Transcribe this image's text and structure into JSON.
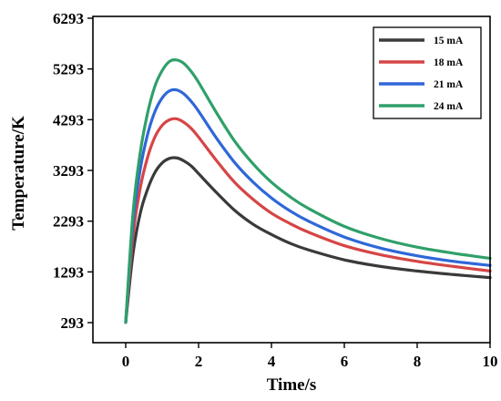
{
  "chart_data": {
    "type": "line",
    "title": "",
    "xlabel": "Time/s",
    "ylabel": "Temperature/K",
    "xlim": [
      -0.9,
      10
    ],
    "ylim": [
      293,
      6293
    ],
    "xticks": [
      0,
      2,
      4,
      6,
      8,
      10
    ],
    "xtick_labels": [
      "0",
      "2",
      "4",
      "6",
      "8",
      "10"
    ],
    "yticks": [
      293,
      1293,
      2293,
      3293,
      4293,
      5293,
      6293
    ],
    "ytick_labels": [
      "293",
      "1293",
      "2293",
      "3293",
      "4293",
      "5293",
      "6293"
    ],
    "grid": false,
    "legend_position": "top-right",
    "series": [
      {
        "name": "15 mA",
        "color": "#3a3a3a",
        "x": [
          0,
          0.2,
          0.4,
          0.6,
          0.8,
          1.0,
          1.2,
          1.4,
          1.6,
          1.8,
          2.0,
          2.5,
          3.0,
          3.5,
          4.0,
          4.5,
          5.0,
          6.0,
          7.0,
          8.0,
          9.0,
          10.0
        ],
        "y": [
          300,
          1650,
          2450,
          2920,
          3250,
          3440,
          3530,
          3540,
          3480,
          3380,
          3230,
          2850,
          2500,
          2230,
          2030,
          1860,
          1730,
          1530,
          1400,
          1310,
          1240,
          1180
        ]
      },
      {
        "name": "18 mA",
        "color": "#d64545",
        "x": [
          0,
          0.2,
          0.4,
          0.6,
          0.8,
          1.0,
          1.2,
          1.4,
          1.6,
          1.8,
          2.0,
          2.5,
          3.0,
          3.5,
          4.0,
          4.5,
          5.0,
          6.0,
          7.0,
          8.0,
          9.0,
          10.0
        ],
        "y": [
          300,
          2000,
          2950,
          3550,
          3950,
          4180,
          4290,
          4310,
          4240,
          4120,
          3950,
          3480,
          3050,
          2720,
          2450,
          2250,
          2080,
          1810,
          1630,
          1500,
          1400,
          1310
        ]
      },
      {
        "name": "21 mA",
        "color": "#2f67d8",
        "x": [
          0,
          0.2,
          0.4,
          0.6,
          0.8,
          1.0,
          1.2,
          1.4,
          1.6,
          1.8,
          2.0,
          2.5,
          3.0,
          3.5,
          4.0,
          4.5,
          5.0,
          6.0,
          7.0,
          8.0,
          9.0,
          10.0
        ],
        "y": [
          300,
          2250,
          3320,
          4000,
          4450,
          4720,
          4860,
          4880,
          4800,
          4650,
          4460,
          3920,
          3440,
          3060,
          2750,
          2500,
          2300,
          1980,
          1760,
          1610,
          1500,
          1420
        ]
      },
      {
        "name": "24 mA",
        "color": "#2fa06a",
        "x": [
          0,
          0.2,
          0.4,
          0.6,
          0.8,
          1.0,
          1.2,
          1.4,
          1.6,
          1.8,
          2.0,
          2.5,
          3.0,
          3.5,
          4.0,
          4.5,
          5.0,
          6.0,
          7.0,
          8.0,
          9.0,
          10.0
        ],
        "y": [
          300,
          2450,
          3650,
          4420,
          4950,
          5260,
          5440,
          5470,
          5400,
          5240,
          5030,
          4420,
          3860,
          3420,
          3060,
          2780,
          2550,
          2190,
          1950,
          1780,
          1660,
          1560
        ]
      }
    ]
  }
}
